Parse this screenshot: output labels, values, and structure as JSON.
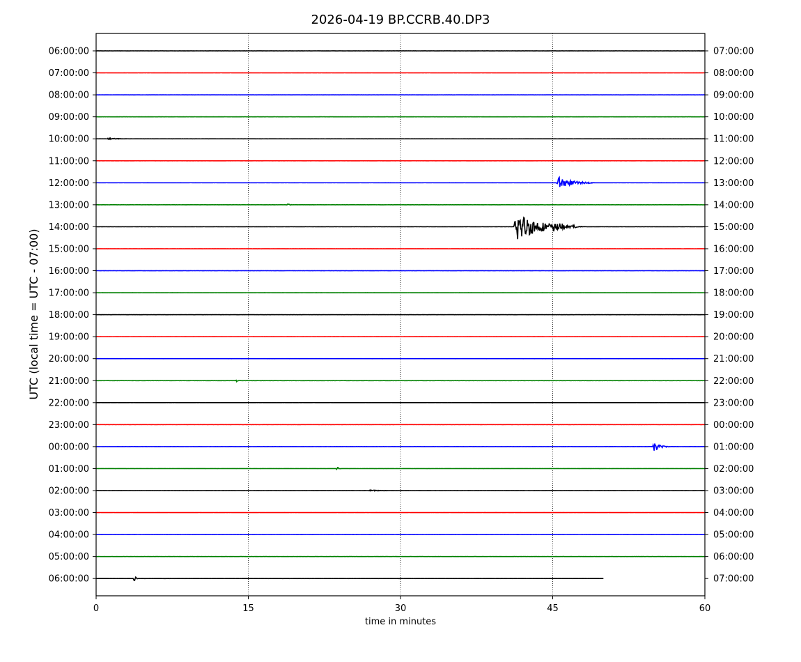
{
  "chart_data": {
    "type": "line",
    "title": "2026-04-19 BP.CCRB.40.DP3",
    "xlabel": "time in minutes",
    "ylabel": "UTC (local time = UTC - 07:00)",
    "xlim": [
      0,
      60
    ],
    "x_ticks": [
      "0",
      "15",
      "30",
      "45",
      "60"
    ],
    "grid": "vertical dotted at 15, 30, 45",
    "color_cycle": [
      "#000000",
      "#ff0000",
      "#0000ff",
      "#008000"
    ],
    "left_labels": [
      "06:00:00",
      "07:00:00",
      "08:00:00",
      "09:00:00",
      "10:00:00",
      "11:00:00",
      "12:00:00",
      "13:00:00",
      "14:00:00",
      "15:00:00",
      "16:00:00",
      "17:00:00",
      "18:00:00",
      "19:00:00",
      "20:00:00",
      "21:00:00",
      "22:00:00",
      "23:00:00",
      "00:00:00",
      "01:00:00",
      "02:00:00",
      "03:00:00",
      "04:00:00",
      "05:00:00",
      "06:00:00"
    ],
    "right_labels": [
      "07:00:00",
      "08:00:00",
      "09:00:00",
      "10:00:00",
      "11:00:00",
      "12:00:00",
      "13:00:00",
      "14:00:00",
      "15:00:00",
      "16:00:00",
      "17:00:00",
      "18:00:00",
      "19:00:00",
      "20:00:00",
      "21:00:00",
      "22:00:00",
      "23:00:00",
      "00:00:00",
      "01:00:00",
      "02:00:00",
      "03:00:00",
      "04:00:00",
      "05:00:00",
      "06:00:00",
      "07:00:00"
    ],
    "trace_end_minute": [
      60,
      60,
      60,
      60,
      60,
      60,
      60,
      60,
      60,
      60,
      60,
      60,
      60,
      60,
      60,
      60,
      60,
      60,
      60,
      60,
      60,
      60,
      60,
      60,
      50
    ],
    "events": [
      {
        "row": 4,
        "minute": 1.2,
        "amplitude": 0.05,
        "duration": 2.0
      },
      {
        "row": 6,
        "minute": 45.5,
        "amplitude": 0.3,
        "duration": 3.5
      },
      {
        "row": 8,
        "minute": 41.3,
        "amplitude": 0.75,
        "duration": 6.0
      },
      {
        "row": 8,
        "minute": 44.9,
        "amplitude": 0.15,
        "duration": 3.5
      },
      {
        "row": 18,
        "minute": 55.0,
        "amplitude": 0.22,
        "duration": 1.5
      },
      {
        "row": 19,
        "minute": 23.8,
        "amplitude": 0.12,
        "duration": 0.3
      },
      {
        "row": 15,
        "minute": 13.9,
        "amplitude": 0.08,
        "duration": 0.3
      },
      {
        "row": 24,
        "minute": 3.8,
        "amplitude": 0.2,
        "duration": 0.3
      },
      {
        "row": 7,
        "minute": 18.9,
        "amplitude": 0.05,
        "duration": 0.5
      },
      {
        "row": 20,
        "minute": 27.0,
        "amplitude": 0.03,
        "duration": 4.0
      }
    ]
  }
}
